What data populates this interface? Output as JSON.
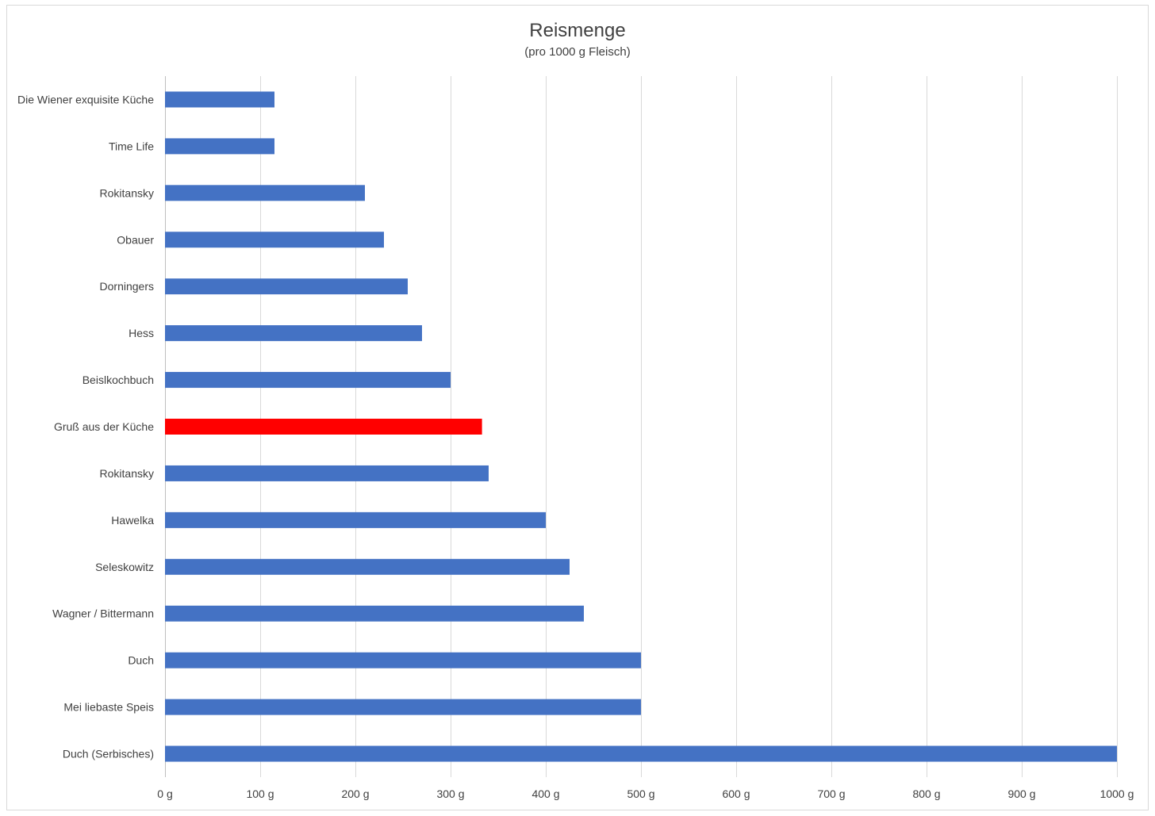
{
  "chart_data": {
    "type": "bar",
    "orientation": "horizontal",
    "title": "Reismenge",
    "subtitle": "(pro 1000 g Fleisch)",
    "xlabel": "",
    "ylabel": "",
    "xlim": [
      0,
      1000
    ],
    "tick_step": 100,
    "tick_labels": [
      "0 g",
      "100 g",
      "200 g",
      "300 g",
      "400 g",
      "500 g",
      "600 g",
      "700 g",
      "800 g",
      "900 g",
      "1000 g"
    ],
    "grid": true,
    "legend": "none",
    "default_color": "#4472c4",
    "highlight_color": "#ff0000",
    "categories": [
      "Die Wiener exquisite Küche",
      "Time Life",
      "Rokitansky",
      "Obauer",
      "Dorningers",
      "Hess",
      "Beislkochbuch",
      "Gruß aus der Küche",
      "Rokitansky",
      "Hawelka",
      "Seleskowitz",
      "Wagner / Bittermann",
      "Duch",
      "Mei liebaste Speis",
      "Duch (Serbisches)"
    ],
    "values": [
      115,
      115,
      210,
      230,
      255,
      270,
      300,
      333,
      340,
      400,
      425,
      440,
      500,
      500,
      1000
    ],
    "highlight": [
      false,
      false,
      false,
      false,
      false,
      false,
      false,
      true,
      false,
      false,
      false,
      false,
      false,
      false,
      false
    ]
  }
}
